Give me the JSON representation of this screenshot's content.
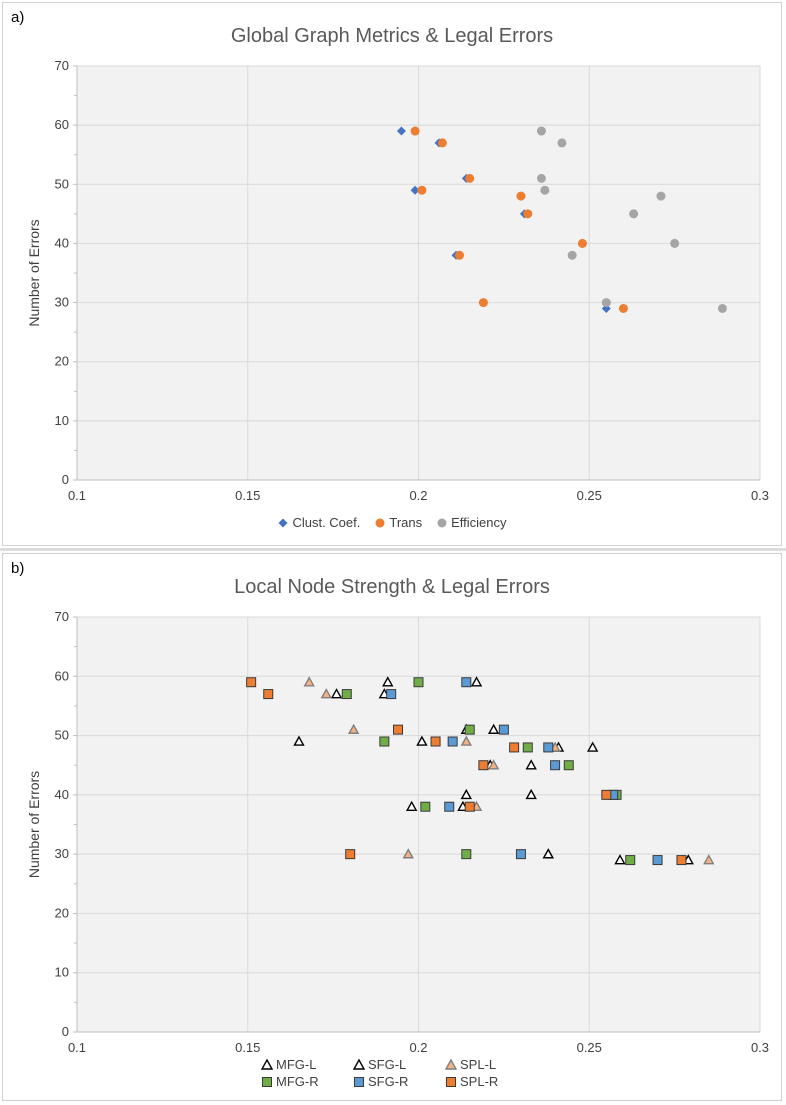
{
  "chart_data": [
    {
      "type": "scatter",
      "panel_label": "a)",
      "title": "Global Graph Metrics & Legal Errors",
      "xlabel": "",
      "ylabel": "Number of Errors",
      "xlim": [
        0.1,
        0.3
      ],
      "ylim": [
        0,
        70
      ],
      "xticks": [
        "0.1",
        "0.15",
        "0.2",
        "0.25",
        "0.3"
      ],
      "yticks": [
        "0",
        "10",
        "20",
        "30",
        "40",
        "50",
        "60",
        "70"
      ],
      "grid": true,
      "legend_position": "bottom",
      "series": [
        {
          "name": "Clust. Coef.",
          "marker": "diamond",
          "color": "#4472C4",
          "points": [
            [
              0.195,
              59
            ],
            [
              0.206,
              57
            ],
            [
              0.214,
              51
            ],
            [
              0.199,
              49
            ],
            [
              0.23,
              48
            ],
            [
              0.231,
              45
            ],
            [
              0.248,
              40
            ],
            [
              0.211,
              38
            ],
            [
              0.219,
              30
            ],
            [
              0.255,
              29
            ]
          ]
        },
        {
          "name": "Trans",
          "marker": "circle",
          "color": "#ED7D31",
          "points": [
            [
              0.199,
              59
            ],
            [
              0.207,
              57
            ],
            [
              0.215,
              51
            ],
            [
              0.201,
              49
            ],
            [
              0.23,
              48
            ],
            [
              0.232,
              45
            ],
            [
              0.248,
              40
            ],
            [
              0.212,
              38
            ],
            [
              0.219,
              30
            ],
            [
              0.26,
              29
            ]
          ]
        },
        {
          "name": "Efficiency",
          "marker": "circle",
          "color": "#A5A5A5",
          "points": [
            [
              0.236,
              59
            ],
            [
              0.242,
              57
            ],
            [
              0.236,
              51
            ],
            [
              0.237,
              49
            ],
            [
              0.271,
              48
            ],
            [
              0.263,
              45
            ],
            [
              0.275,
              40
            ],
            [
              0.245,
              38
            ],
            [
              0.255,
              30
            ],
            [
              0.289,
              29
            ]
          ]
        }
      ]
    },
    {
      "type": "scatter",
      "panel_label": "b)",
      "title": "Local Node Strength & Legal Errors",
      "xlabel": "",
      "ylabel": "Number of Errors",
      "xlim": [
        0.1,
        0.3
      ],
      "ylim": [
        0,
        70
      ],
      "xticks": [
        "0.1",
        "0.15",
        "0.2",
        "0.25",
        "0.3"
      ],
      "yticks": [
        "0",
        "10",
        "20",
        "30",
        "40",
        "50",
        "60",
        "70"
      ],
      "grid": true,
      "legend_position": "bottom",
      "series": [
        {
          "name": "MFG-L",
          "marker": "triangle",
          "color": "#ffffff",
          "stroke": "#000000",
          "points": [
            [
              0.191,
              59
            ],
            [
              0.176,
              57
            ],
            [
              0.165,
              49
            ],
            [
              0.214,
              51
            ],
            [
              0.221,
              45
            ],
            [
              0.241,
              48
            ],
            [
              0.233,
              40
            ],
            [
              0.198,
              38
            ],
            [
              0.238,
              30
            ],
            [
              0.259,
              29
            ]
          ]
        },
        {
          "name": "SFG-L",
          "marker": "triangle",
          "color": "#ffffff",
          "stroke": "#000000",
          "points": [
            [
              0.217,
              59
            ],
            [
              0.19,
              57
            ],
            [
              0.222,
              51
            ],
            [
              0.201,
              49
            ],
            [
              0.251,
              48
            ],
            [
              0.233,
              45
            ],
            [
              0.214,
              40
            ],
            [
              0.213,
              38
            ],
            [
              0.238,
              30
            ],
            [
              0.279,
              29
            ]
          ]
        },
        {
          "name": "SPL-L",
          "marker": "triangle",
          "color": "#F4B183",
          "stroke": "#7F7F7F",
          "points": [
            [
              0.168,
              59
            ],
            [
              0.173,
              57
            ],
            [
              0.181,
              51
            ],
            [
              0.214,
              49
            ],
            [
              0.24,
              48
            ],
            [
              0.222,
              45
            ],
            [
              0.217,
              38
            ],
            [
              0.197,
              30
            ],
            [
              0.285,
              29
            ]
          ]
        },
        {
          "name": "MFG-R",
          "marker": "square",
          "color": "#70AD47",
          "stroke": "#3A3A3A",
          "points": [
            [
              0.2,
              59
            ],
            [
              0.179,
              57
            ],
            [
              0.215,
              51
            ],
            [
              0.19,
              49
            ],
            [
              0.232,
              48
            ],
            [
              0.244,
              45
            ],
            [
              0.258,
              40
            ],
            [
              0.202,
              38
            ],
            [
              0.214,
              30
            ],
            [
              0.262,
              29
            ]
          ]
        },
        {
          "name": "SFG-R",
          "marker": "square",
          "color": "#5B9BD5",
          "stroke": "#3A3A3A",
          "points": [
            [
              0.214,
              59
            ],
            [
              0.192,
              57
            ],
            [
              0.225,
              51
            ],
            [
              0.21,
              49
            ],
            [
              0.238,
              48
            ],
            [
              0.24,
              45
            ],
            [
              0.257,
              40
            ],
            [
              0.209,
              38
            ],
            [
              0.23,
              30
            ],
            [
              0.27,
              29
            ]
          ]
        },
        {
          "name": "SPL-R",
          "marker": "square",
          "color": "#ED7D31",
          "stroke": "#3A3A3A",
          "points": [
            [
              0.151,
              59
            ],
            [
              0.156,
              57
            ],
            [
              0.194,
              51
            ],
            [
              0.205,
              49
            ],
            [
              0.228,
              48
            ],
            [
              0.219,
              45
            ],
            [
              0.255,
              40
            ],
            [
              0.215,
              38
            ],
            [
              0.18,
              30
            ],
            [
              0.277,
              29
            ]
          ]
        }
      ]
    }
  ]
}
